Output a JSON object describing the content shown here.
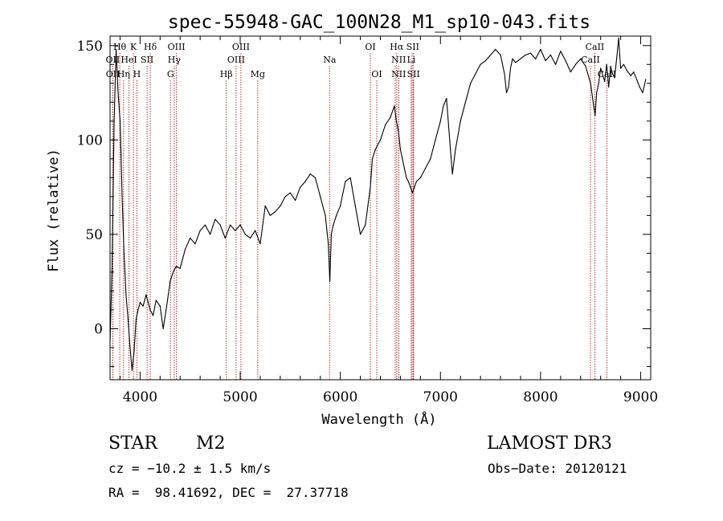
{
  "chart_data": {
    "type": "line",
    "title": "spec-55948-GAC_100N28_M1_sp10-043.fits",
    "xlabel": "Wavelength (Å)",
    "ylabel": "Flux (relative)",
    "xlim": [
      3700,
      9100
    ],
    "ylim": [
      -27,
      155
    ],
    "x_ticks": [
      4000,
      5000,
      6000,
      7000,
      8000,
      9000
    ],
    "y_ticks": [
      0,
      50,
      100,
      150
    ],
    "grid": false,
    "series": [
      {
        "x": [
          3700,
          3720,
          3740,
          3760,
          3780,
          3800,
          3810,
          3820,
          3840,
          3860,
          3880,
          3900,
          3920,
          3940,
          3960,
          3980,
          4000,
          4030,
          4060,
          4100,
          4130,
          4160,
          4200,
          4230,
          4260,
          4300,
          4330,
          4360,
          4400,
          4450,
          4500,
          4550,
          4600,
          4650,
          4700,
          4750,
          4800,
          4850,
          4900,
          4950,
          5000,
          5050,
          5100,
          5150,
          5200,
          5250,
          5300,
          5350,
          5400,
          5450,
          5500,
          5550,
          5600,
          5650,
          5700,
          5750,
          5800,
          5850,
          5880,
          5895,
          5910,
          5930,
          5960,
          6000,
          6050,
          6100,
          6150,
          6200,
          6250,
          6300,
          6320,
          6350,
          6400,
          6450,
          6500,
          6540,
          6560,
          6580,
          6600,
          6620,
          6640,
          6660,
          6680,
          6700,
          6720,
          6740,
          6760,
          6800,
          6850,
          6900,
          6950,
          7000,
          7030,
          7060,
          7100,
          7120,
          7150,
          7200,
          7250,
          7300,
          7350,
          7400,
          7450,
          7500,
          7550,
          7600,
          7640,
          7660,
          7680,
          7700,
          7720,
          7750,
          7800,
          7850,
          7900,
          7950,
          8000,
          8050,
          8100,
          8150,
          8200,
          8250,
          8300,
          8350,
          8400,
          8450,
          8500,
          8530,
          8545,
          8560,
          8580,
          8600,
          8640,
          8660,
          8680,
          8700,
          8720,
          8740,
          8760,
          8780,
          8800,
          8830,
          8860,
          8900,
          8930,
          8960,
          8990,
          9020,
          9050
        ],
        "y": [
          -7,
          32,
          108,
          148,
          125,
          110,
          92,
          70,
          40,
          18,
          5,
          -10,
          -22,
          -12,
          5,
          10,
          14,
          12,
          18,
          10,
          7,
          15,
          12,
          0,
          10,
          25,
          30,
          33,
          32,
          42,
          48,
          45,
          52,
          55,
          50,
          58,
          55,
          48,
          55,
          52,
          55,
          50,
          48,
          52,
          45,
          65,
          60,
          62,
          65,
          70,
          72,
          68,
          75,
          78,
          82,
          80,
          70,
          60,
          45,
          25,
          50,
          55,
          60,
          65,
          78,
          80,
          65,
          50,
          55,
          75,
          90,
          95,
          100,
          108,
          112,
          118,
          110,
          105,
          95,
          90,
          85,
          80,
          78,
          75,
          72,
          75,
          78,
          80,
          85,
          90,
          100,
          110,
          118,
          122,
          95,
          82,
          95,
          110,
          120,
          130,
          135,
          140,
          142,
          145,
          148,
          145,
          135,
          125,
          128,
          138,
          143,
          141,
          143,
          145,
          146,
          143,
          148,
          142,
          145,
          140,
          147,
          142,
          136,
          140,
          143,
          139,
          130,
          118,
          113,
          125,
          130,
          138,
          131,
          140,
          128,
          139,
          135,
          133,
          143,
          154,
          138,
          140,
          137,
          134,
          136,
          132,
          128,
          125,
          132
        ]
      }
    ],
    "line_marks": [
      {
        "label": "Hθ",
        "row": 1,
        "x": 3797,
        "lines": [
          3797
        ]
      },
      {
        "label": "K",
        "row": 1,
        "x": 3934,
        "lines": [
          3934
        ]
      },
      {
        "label": "Hδ",
        "row": 1,
        "x": 4102,
        "lines": [
          4102
        ]
      },
      {
        "label": "OIII",
        "row": 1,
        "x": 4363,
        "lines": [
          4363
        ]
      },
      {
        "label": "OIII",
        "row": 1,
        "x": 5007,
        "lines": [
          5007
        ]
      },
      {
        "label": "OI",
        "row": 1,
        "x": 6300,
        "lines": [
          6300
        ]
      },
      {
        "label": "Hα",
        "row": 1,
        "x": 6563,
        "lines": [
          6563
        ]
      },
      {
        "label": "SII",
        "row": 1,
        "x": 6724,
        "lines": [
          6717,
          6731
        ]
      },
      {
        "label": "CaII",
        "row": 1,
        "x": 8542,
        "lines": [
          8542
        ]
      },
      {
        "label": "OII",
        "row": 2,
        "x": 3727,
        "lines": [
          3727
        ]
      },
      {
        "label": "HeI",
        "row": 2,
        "x": 3889,
        "lines": [
          3889
        ]
      },
      {
        "label": "SII",
        "row": 2,
        "x": 4070,
        "lines": [
          4070
        ]
      },
      {
        "label": "Hγ",
        "row": 2,
        "x": 4341,
        "lines": [
          4341
        ]
      },
      {
        "label": "OIII",
        "row": 2,
        "x": 4959,
        "lines": [
          4959
        ]
      },
      {
        "label": "Na",
        "row": 2,
        "x": 5893,
        "lines": [
          5893
        ]
      },
      {
        "label": "NII",
        "row": 2,
        "x": 6583,
        "lines": [
          6548,
          6583
        ]
      },
      {
        "label": "Li",
        "row": 2,
        "x": 6708,
        "lines": [
          6708
        ]
      },
      {
        "label": "CaII",
        "row": 2,
        "x": 8498,
        "lines": [
          8498
        ]
      },
      {
        "label": "OII",
        "row": 3,
        "x": 3729,
        "lines": [
          3729
        ]
      },
      {
        "label": "Hη",
        "row": 3,
        "x": 3835,
        "lines": [
          3835
        ]
      },
      {
        "label": "H",
        "row": 3,
        "x": 3968,
        "lines": [
          3968
        ]
      },
      {
        "label": "G",
        "row": 3,
        "x": 4304,
        "lines": [
          4304
        ]
      },
      {
        "label": "Hβ",
        "row": 3,
        "x": 4861,
        "lines": [
          4861
        ]
      },
      {
        "label": "Mg",
        "row": 3,
        "x": 5175,
        "lines": [
          5175
        ]
      },
      {
        "label": "OI",
        "row": 3,
        "x": 6364,
        "lines": [
          6364
        ]
      },
      {
        "label": "NII",
        "row": 3,
        "x": 6583,
        "lines": [
          6583
        ]
      },
      {
        "label": "SII",
        "row": 3,
        "x": 6731,
        "lines": [
          6731
        ]
      },
      {
        "label": "CaII",
        "row": 3,
        "x": 8662,
        "lines": [
          8662
        ]
      }
    ]
  },
  "info": {
    "class": "STAR",
    "subclass": "M2",
    "survey": "LAMOST DR3",
    "cz": "cz = −10.2 ± 1.5 km/s",
    "obs_date": "Obs−Date: 20120121",
    "coords": "RA =  98.41692, DEC =  27.37718"
  },
  "colors": {
    "spectrum": "#000000",
    "line_marker": "#b03030",
    "axes": "#000000",
    "background": "#ffffff"
  }
}
